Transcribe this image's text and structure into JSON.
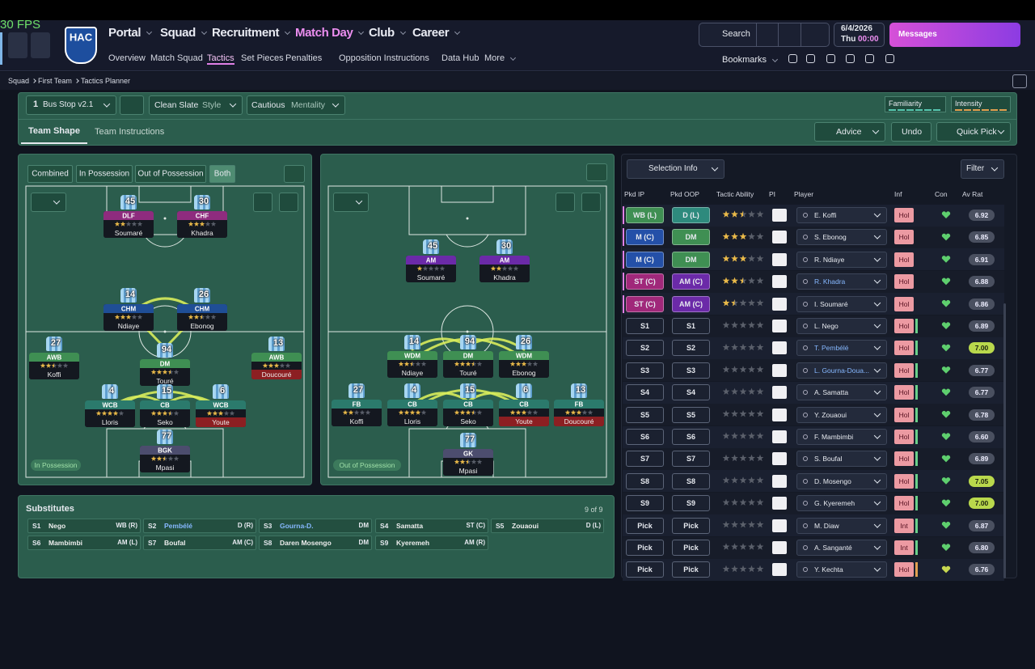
{
  "overlay": {
    "fps": "30 FPS"
  },
  "header": {
    "logo": "HAC",
    "nav": [
      "Portal",
      "Squad",
      "Recruitment",
      "Match Day",
      "Club",
      "Career"
    ],
    "subnav": [
      "Overview",
      "Match Squad",
      "Tactics",
      "Set Pieces",
      "Penalties",
      "Opposition Instructions",
      "Data Hub",
      "More"
    ],
    "search": "Search",
    "date": "6/4/2026",
    "day": "Thu",
    "time": "00:00",
    "messages": "Messages",
    "bookmarks": "Bookmarks"
  },
  "breadcrumb": [
    "Squad",
    "First Team",
    "Tactics Planner"
  ],
  "toolbar": {
    "tactic_slot": "1",
    "tactic": "Bus Stop v2.1",
    "style_value": "Clean Slate",
    "style_label": "Style",
    "mentality_value": "Cautious",
    "mentality_label": "Mentality",
    "familiarity": "Familiarity",
    "intensity": "Intensity"
  },
  "tabs": [
    "Team Shape",
    "Team Instructions"
  ],
  "actions": [
    "Advice",
    "Undo",
    "Quick Pick"
  ],
  "view_toggle": [
    "Combined",
    "In Possession",
    "Out of Possession",
    "Both"
  ],
  "pitches": [
    {
      "label": "In Possession",
      "players": [
        {
          "number": "45",
          "role": "DLF",
          "name": "Soumaré",
          "stars": 2
        },
        {
          "number": "30",
          "role": "CHF",
          "name": "Khadra",
          "stars": 3
        },
        {
          "number": "14",
          "role": "CHM",
          "name": "Ndiaye",
          "stars": 3
        },
        {
          "number": "26",
          "role": "CHM",
          "name": "Ebonog",
          "stars": 2.5
        },
        {
          "number": "27",
          "role": "AWB",
          "name": "Koffi",
          "stars": 2.5
        },
        {
          "number": "94",
          "role": "DM",
          "name": "Touré",
          "stars": 3.5
        },
        {
          "number": "13",
          "role": "AWB",
          "name": "Doucouré",
          "stars": 3
        },
        {
          "number": "4",
          "role": "WCB",
          "name": "Lloris",
          "stars": 4
        },
        {
          "number": "15",
          "role": "CB",
          "name": "Seko",
          "stars": 3.5
        },
        {
          "number": "6",
          "role": "WCB",
          "name": "Youte",
          "stars": 3
        },
        {
          "number": "77",
          "role": "BGK",
          "name": "Mpasi",
          "stars": 2.5
        }
      ]
    },
    {
      "label": "Out of Possession",
      "players": [
        {
          "number": "45",
          "role": "AM",
          "name": "Soumaré",
          "stars": 1
        },
        {
          "number": "30",
          "role": "AM",
          "name": "Khadra",
          "stars": 2
        },
        {
          "number": "14",
          "role": "WDM",
          "name": "Ndiaye",
          "stars": 2.5
        },
        {
          "number": "94",
          "role": "DM",
          "name": "Touré",
          "stars": 3.5
        },
        {
          "number": "26",
          "role": "WDM",
          "name": "Ebonog",
          "stars": 3
        },
        {
          "number": "27",
          "role": "FB",
          "name": "Koffi",
          "stars": 2
        },
        {
          "number": "4",
          "role": "CB",
          "name": "Lloris",
          "stars": 4
        },
        {
          "number": "15",
          "role": "CB",
          "name": "Seko",
          "stars": 3.5
        },
        {
          "number": "6",
          "role": "CB",
          "name": "Youte",
          "stars": 3
        },
        {
          "number": "13",
          "role": "FB",
          "name": "Doucouré",
          "stars": 3
        },
        {
          "number": "77",
          "role": "GK",
          "name": "Mpasi",
          "stars": 2.5
        }
      ]
    }
  ],
  "substitutes": {
    "title": "Substitutes",
    "count": "9 of 9",
    "items": [
      {
        "slot": "S1",
        "name": "Nego",
        "position": "WB (R)"
      },
      {
        "slot": "S2",
        "name": "Pembélé",
        "position": "D (R)"
      },
      {
        "slot": "S3",
        "name": "Gourna-D.",
        "position": "DM"
      },
      {
        "slot": "S4",
        "name": "Samatta",
        "position": "ST (C)"
      },
      {
        "slot": "S5",
        "name": "Zouaoui",
        "position": "D (L)"
      },
      {
        "slot": "S6",
        "name": "Mambimbi",
        "position": "AM (L)"
      },
      {
        "slot": "S7",
        "name": "Boufal",
        "position": "AM (C)"
      },
      {
        "slot": "S8",
        "name": "Daren Mosengo",
        "position": "DM"
      },
      {
        "slot": "S9",
        "name": "Kyeremeh",
        "position": "AM (R)"
      }
    ]
  },
  "selection": {
    "selection_info": "Selection Info",
    "filter": "Filter",
    "headers": [
      "Pkd IP",
      "Pkd OOP",
      "Tactic Ability",
      "PI",
      "Player",
      "Inf",
      "Con",
      "Av Rat"
    ],
    "rows": [
      {
        "ip": "WB (L)",
        "oop": "D (L)",
        "ability": 2.5,
        "player": "E. Koffi",
        "inf": "Hol",
        "rating": "6.92"
      },
      {
        "ip": "M (C)",
        "oop": "DM",
        "ability": 3,
        "player": "S. Ebonog",
        "inf": "Hol",
        "rating": "6.85"
      },
      {
        "ip": "M (C)",
        "oop": "DM",
        "ability": 3,
        "player": "R. Ndiaye",
        "inf": "Hol",
        "rating": "6.91"
      },
      {
        "ip": "ST (C)",
        "oop": "AM (C)",
        "ability": 2.5,
        "player": "R. Khadra",
        "inf": "Hol",
        "rating": "6.88"
      },
      {
        "ip": "ST (C)",
        "oop": "AM (C)",
        "ability": 1.5,
        "player": "I. Soumaré",
        "inf": "Hol",
        "rating": "6.86"
      },
      {
        "ip": "S1",
        "oop": "S1",
        "ability": 0,
        "player": "L. Nego",
        "inf": "Hol",
        "rating": "6.89"
      },
      {
        "ip": "S2",
        "oop": "S2",
        "ability": 0,
        "player": "T. Pembélé",
        "inf": "Hol",
        "rating": "7.00"
      },
      {
        "ip": "S3",
        "oop": "S3",
        "ability": 0,
        "player": "L. Gourna-Doua...",
        "inf": "Hol",
        "rating": "6.77"
      },
      {
        "ip": "S4",
        "oop": "S4",
        "ability": 0,
        "player": "A. Samatta",
        "inf": "Hol",
        "rating": "6.77"
      },
      {
        "ip": "S5",
        "oop": "S5",
        "ability": 0,
        "player": "Y. Zouaoui",
        "inf": "Hol",
        "rating": "6.78"
      },
      {
        "ip": "S6",
        "oop": "S6",
        "ability": 0,
        "player": "F. Mambimbi",
        "inf": "Hol",
        "rating": "6.60"
      },
      {
        "ip": "S7",
        "oop": "S7",
        "ability": 0,
        "player": "S. Boufal",
        "inf": "Hol",
        "rating": "6.89"
      },
      {
        "ip": "S8",
        "oop": "S8",
        "ability": 0,
        "player": "D. Mosengo",
        "inf": "Hol",
        "rating": "7.05"
      },
      {
        "ip": "S9",
        "oop": "S9",
        "ability": 0,
        "player": "G. Kyeremeh",
        "inf": "Hol",
        "rating": "7.00"
      },
      {
        "ip": "Pick",
        "oop": "Pick",
        "ability": 0,
        "player": "M. Diaw",
        "inf": "Int",
        "rating": "6.87"
      },
      {
        "ip": "Pick",
        "oop": "Pick",
        "ability": 0,
        "player": "A. Sanganté",
        "inf": "Int",
        "rating": "6.80"
      },
      {
        "ip": "Pick",
        "oop": "Pick",
        "ability": 0,
        "player": "Y. Kechta",
        "inf": "Hol",
        "rating": "6.76"
      }
    ]
  }
}
